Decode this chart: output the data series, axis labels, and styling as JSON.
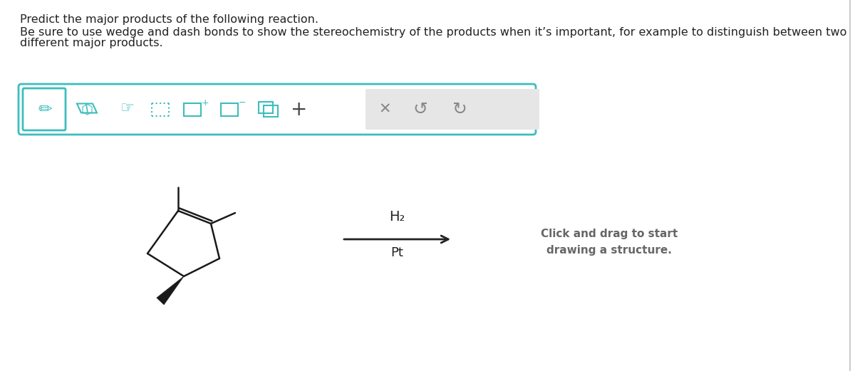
{
  "title_text": "Predict the major products of the following reaction.",
  "subtitle_line1": "Be sure to use wedge and dash bonds to show the stereochemistry of the products when it’s important, for example to distinguish between two",
  "subtitle_line2": "different major products.",
  "bg_color": "#ffffff",
  "teal_color": "#3dbdbd",
  "gray_color": "#e0e0e0",
  "dark_color": "#222222",
  "mid_gray": "#999999",
  "molecule_color": "#1a1a1a",
  "h2_label": "H₂",
  "pt_label": "Pt",
  "click_drag_text": "Click and drag to start\ndrawing a structure.",
  "title_fontsize": 11.5,
  "subtitle_fontsize": 11.5,
  "click_drag_fontsize": 11,
  "reagent_fontsize": 13
}
